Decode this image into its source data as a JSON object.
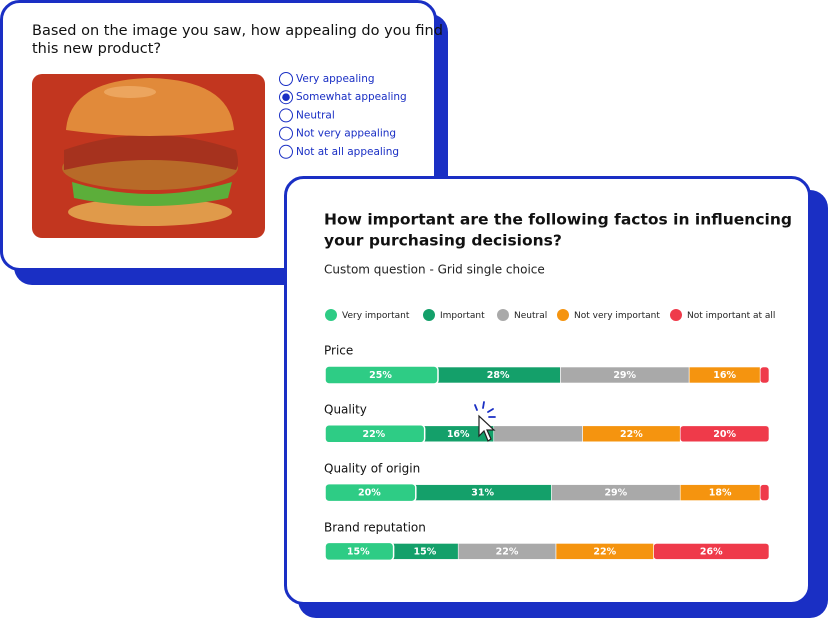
{
  "survey": {
    "question_lines": [
      "Based on the image you saw, how appealing do you find",
      "this new product?"
    ],
    "options": [
      "Very appealing",
      "Somewhat appealing",
      "Neutral",
      "Not very appealing",
      "Not at all appealing"
    ],
    "selected": 1
  },
  "chart_data": {
    "type": "bar",
    "orientation": "horizontal",
    "stacked": true,
    "title_lines": [
      "How important are the following factos in influencing",
      "your purchasing decisions?"
    ],
    "subtitle": "Custom question - Grid single choice",
    "categories": [
      "Price",
      "Quality",
      "Quality of origin",
      "Brand reputation"
    ],
    "xlim": [
      0,
      100
    ],
    "series": [
      {
        "name": "Very important",
        "color": "#2ecc85",
        "values": [
          25,
          22,
          20,
          15
        ],
        "value_labels": [
          "25%",
          "22%",
          "20%",
          "15%"
        ]
      },
      {
        "name": "Important",
        "color": "#14a06a",
        "values": [
          28,
          16,
          31,
          15
        ],
        "value_labels": [
          "28%",
          "16%",
          "31%",
          "15%"
        ]
      },
      {
        "name": "Neutral",
        "color": "#a9a9a9",
        "values": [
          29,
          20,
          29,
          22
        ],
        "value_labels": [
          "29%",
          null,
          "29%",
          "22%"
        ]
      },
      {
        "name": "Not very important",
        "color": "#f5940f",
        "values": [
          16,
          22,
          18,
          22
        ],
        "value_labels": [
          "16%",
          "22%",
          "18%",
          "22%"
        ]
      },
      {
        "name": "Not important at all",
        "color": "#ef3a4a",
        "values": [
          2,
          20,
          2,
          26
        ],
        "value_labels": [
          null,
          "20%",
          null,
          "26%"
        ]
      }
    ]
  }
}
